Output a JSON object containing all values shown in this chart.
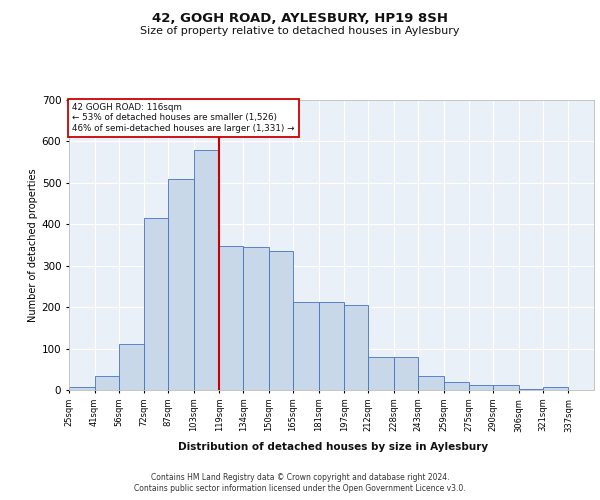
{
  "title1": "42, GOGH ROAD, AYLESBURY, HP19 8SH",
  "title2": "Size of property relative to detached houses in Aylesbury",
  "xlabel": "Distribution of detached houses by size in Aylesbury",
  "ylabel": "Number of detached properties",
  "footnote": "Contains HM Land Registry data © Crown copyright and database right 2024.\nContains public sector information licensed under the Open Government Licence v3.0.",
  "bar_left_edges": [
    25,
    41,
    56,
    72,
    87,
    103,
    119,
    134,
    150,
    165,
    181,
    197,
    212,
    228,
    243,
    259,
    275,
    290,
    306,
    321
  ],
  "bar_widths": [
    16,
    15,
    16,
    15,
    16,
    16,
    15,
    16,
    15,
    16,
    16,
    15,
    16,
    15,
    16,
    16,
    15,
    16,
    15,
    16
  ],
  "bar_heights": [
    7,
    35,
    112,
    415,
    510,
    580,
    347,
    345,
    335,
    213,
    212,
    205,
    80,
    80,
    35,
    20,
    12,
    12,
    3,
    7
  ],
  "bar_color": "#c8d8e8",
  "bar_edge_color": "#4472c4",
  "bg_color": "#eaf0f8",
  "grid_color": "#ffffff",
  "property_line_x": 119,
  "annotation_text": "42 GOGH ROAD: 116sqm\n← 53% of detached houses are smaller (1,526)\n46% of semi-detached houses are larger (1,331) →",
  "annotation_box_color": "#ffffff",
  "annotation_border_color": "#cc0000",
  "vline_color": "#cc0000",
  "ylim": [
    0,
    700
  ],
  "yticks": [
    0,
    100,
    200,
    300,
    400,
    500,
    600,
    700
  ],
  "tick_labels": [
    "25sqm",
    "41sqm",
    "56sqm",
    "72sqm",
    "87sqm",
    "103sqm",
    "119sqm",
    "134sqm",
    "150sqm",
    "165sqm",
    "181sqm",
    "197sqm",
    "212sqm",
    "228sqm",
    "243sqm",
    "259sqm",
    "275sqm",
    "290sqm",
    "306sqm",
    "321sqm",
    "337sqm"
  ],
  "tick_positions": [
    25,
    41,
    56,
    72,
    87,
    103,
    119,
    134,
    150,
    165,
    181,
    197,
    212,
    228,
    243,
    259,
    275,
    290,
    306,
    321,
    337
  ],
  "xlim_left": 25,
  "xlim_right": 353
}
